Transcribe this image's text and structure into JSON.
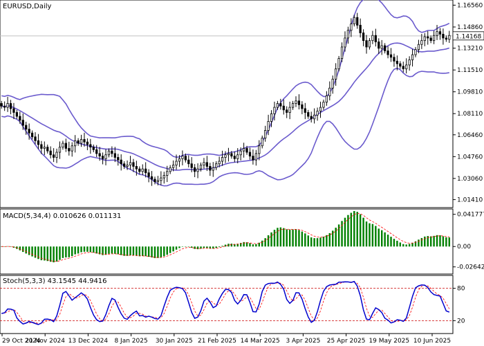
{
  "chart_data": [
    {
      "type": "candlestick",
      "title": "EURUSD,Daily",
      "price_label": "1.14168",
      "ylim": [
        1.0095,
        1.168
      ],
      "y_ticks": [
        "1.16560",
        "1.14860",
        "1.13210",
        "1.11510",
        "1.09810",
        "1.08110",
        "1.06460",
        "1.04760",
        "1.03060",
        "1.01410"
      ],
      "y_tick_values": [
        1.1656,
        1.1486,
        1.1321,
        1.1151,
        1.0981,
        1.0811,
        1.0646,
        1.0476,
        1.0306,
        1.0141
      ],
      "last_price": 1.14168,
      "indicators": [
        "Bollinger Bands (20,2)"
      ],
      "close": [
        1.087,
        1.086,
        1.089,
        1.085,
        1.082,
        1.079,
        1.076,
        1.072,
        1.069,
        1.066,
        1.063,
        1.06,
        1.057,
        1.054,
        1.055,
        1.052,
        1.049,
        1.047,
        1.051,
        1.055,
        1.058,
        1.054,
        1.052,
        1.056,
        1.06,
        1.058,
        1.061,
        1.059,
        1.057,
        1.055,
        1.053,
        1.05,
        1.048,
        1.046,
        1.049,
        1.052,
        1.05,
        1.047,
        1.045,
        1.042,
        1.04,
        1.041,
        1.043,
        1.04,
        1.038,
        1.036,
        1.038,
        1.035,
        1.032,
        1.03,
        1.028,
        1.029,
        1.031,
        1.033,
        1.036,
        1.039,
        1.041,
        1.044,
        1.046,
        1.048,
        1.045,
        1.042,
        1.039,
        1.036,
        1.038,
        1.041,
        1.043,
        1.04,
        1.037,
        1.039,
        1.042,
        1.044,
        1.047,
        1.049,
        1.05,
        1.048,
        1.046,
        1.049,
        1.052,
        1.054,
        1.051,
        1.048,
        1.045,
        1.05,
        1.056,
        1.062,
        1.068,
        1.075,
        1.081,
        1.086,
        1.089,
        1.087,
        1.084,
        1.082,
        1.086,
        1.089,
        1.091,
        1.088,
        1.085,
        1.082,
        1.079,
        1.077,
        1.08,
        1.083,
        1.086,
        1.09,
        1.095,
        1.101,
        1.108,
        1.116,
        1.124,
        1.133,
        1.14,
        1.146,
        1.151,
        1.156,
        1.15,
        1.144,
        1.138,
        1.133,
        1.138,
        1.142,
        1.137,
        1.132,
        1.134,
        1.13,
        1.127,
        1.125,
        1.122,
        1.12,
        1.118,
        1.116,
        1.119,
        1.123,
        1.127,
        1.131,
        1.135,
        1.138,
        1.141,
        1.14,
        1.138,
        1.142,
        1.145,
        1.143,
        1.14,
        1.139,
        1.142
      ]
    },
    {
      "type": "histogram",
      "title": "MACD(5,34,4) 0.010626 0.011131",
      "y_ticks": [
        "0.041777",
        "0.00",
        "-0.026427"
      ],
      "y_tick_values": [
        0.041777,
        0.0,
        -0.026427
      ],
      "ylim": [
        -0.033,
        0.046
      ]
    },
    {
      "type": "line",
      "title": "Stoch(5,3,3) 43.1545 44.9416",
      "y_ticks": [
        "80",
        "20"
      ],
      "y_tick_values": [
        80,
        20
      ],
      "ylim": [
        0,
        100
      ]
    }
  ],
  "x_ticks": [
    "29 Oct 2024",
    "21 Nov 2024",
    "13 Dec 2024",
    "8 Jan 2025",
    "30 Jan 2025",
    "21 Feb 2025",
    "14 Mar 2025",
    "3 Apr 2025",
    "25 Apr 2025",
    "19 May 2025",
    "10 Jun 2025"
  ],
  "colors": {
    "bollinger": "#6a5acd",
    "candle": "#000000",
    "macd_hist": "#008000",
    "macd_signal": "#ff0000",
    "stoch_main": "#0000cd",
    "stoch_signal": "#ff0000",
    "levels": "#cc0000",
    "price_line": "#c0c0c0"
  }
}
